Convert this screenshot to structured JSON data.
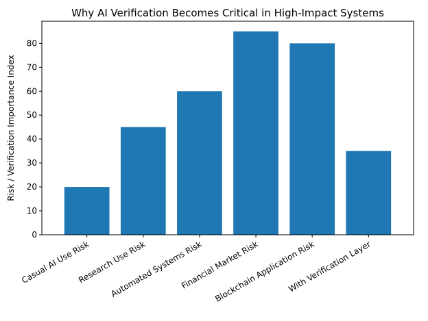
{
  "chart_data": {
    "type": "bar",
    "title": "Why AI Verification Becomes Critical in High-Impact Systems",
    "xlabel": "",
    "ylabel": "Risk / Verification Importance Index",
    "categories": [
      "Casual AI Use Risk",
      "Research Use Risk",
      "Automated Systems Risk",
      "Financial Market Risk",
      "Blockchain Application Risk",
      "With Verification Layer"
    ],
    "values": [
      20,
      45,
      60,
      85,
      80,
      35
    ],
    "ylim": [
      0,
      89.25
    ],
    "yticks": [
      0,
      10,
      20,
      30,
      40,
      50,
      60,
      70,
      80
    ],
    "bar_color": "#1f77b4",
    "grid": false,
    "legend": "none"
  }
}
